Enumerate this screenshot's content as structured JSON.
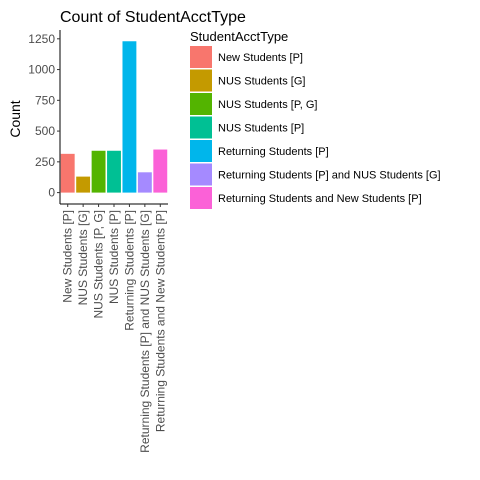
{
  "chart_data": {
    "type": "bar",
    "title": "Count of StudentAcctType",
    "xlabel": "",
    "ylabel": "Count",
    "ylim": [
      0,
      1300
    ],
    "yticks": [
      0,
      250,
      500,
      750,
      1000,
      1250
    ],
    "grid": false,
    "legend_position": "right",
    "legend_title": "StudentAcctType",
    "categories": [
      "New Students [P]",
      "NUS Students [G]",
      "NUS Students [P, G]",
      "NUS Students [P]",
      "Returning Students [P]",
      "Returning Students [P] and NUS Students [G]",
      "Returning Students and New Students [P]"
    ],
    "values": [
      315,
      130,
      340,
      340,
      1230,
      165,
      350
    ],
    "colors": [
      "#F8766D",
      "#C49A00",
      "#53B400",
      "#00C094",
      "#00B6EB",
      "#A58AFF",
      "#FB61D7"
    ]
  }
}
